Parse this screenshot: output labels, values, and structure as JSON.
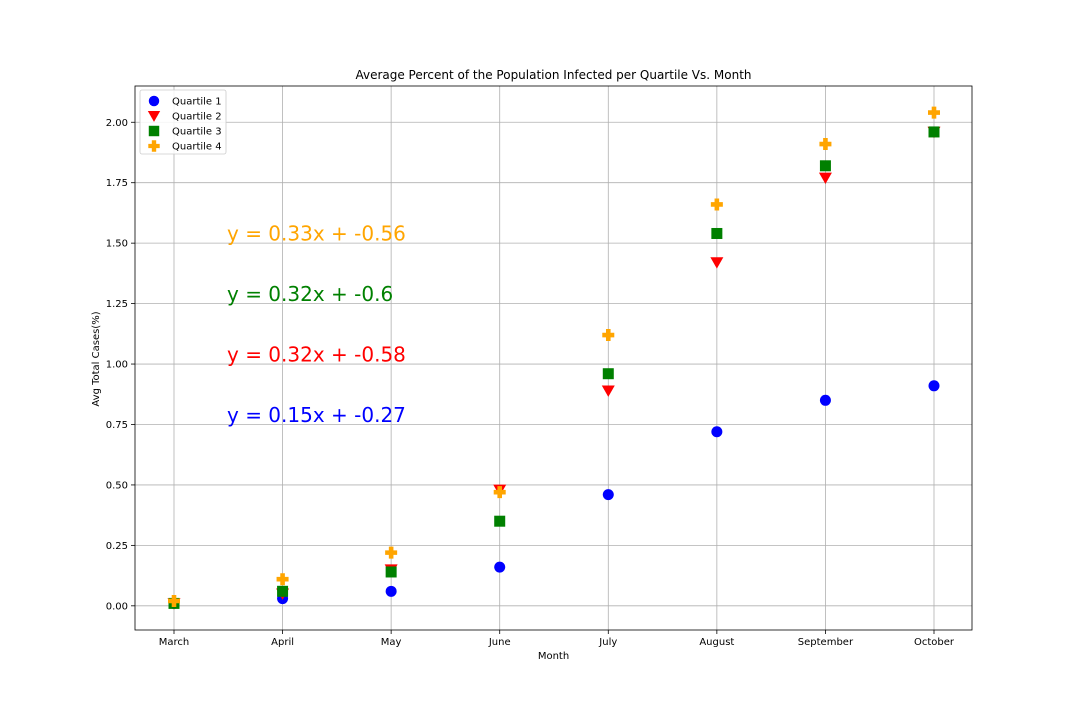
{
  "chart_data": {
    "type": "scatter",
    "title": "Average Percent of the Population Infected per Quartile Vs. Month",
    "xlabel": "Month",
    "ylabel": "Avg Total Cases(%)",
    "categories": [
      "March",
      "April",
      "May",
      "June",
      "July",
      "August",
      "September",
      "October"
    ],
    "ylim": [
      -0.1,
      2.15
    ],
    "yticks": [
      "0.00",
      "0.25",
      "0.50",
      "0.75",
      "1.00",
      "1.25",
      "1.50",
      "1.75",
      "2.00"
    ],
    "grid": true,
    "legend_position": "top-left",
    "series": [
      {
        "name": "Quartile 1",
        "color": "#0000ff",
        "marker": "circle",
        "values": [
          0.01,
          0.03,
          0.06,
          0.16,
          0.46,
          0.72,
          0.85,
          0.91
        ]
      },
      {
        "name": "Quartile 2",
        "color": "#ff0000",
        "marker": "triangle-down",
        "values": [
          0.01,
          0.05,
          0.15,
          0.48,
          0.89,
          1.42,
          1.77,
          1.96
        ]
      },
      {
        "name": "Quartile 3",
        "color": "#008000",
        "marker": "square",
        "values": [
          0.01,
          0.06,
          0.14,
          0.35,
          0.96,
          1.54,
          1.82,
          1.96
        ]
      },
      {
        "name": "Quartile 4",
        "color": "#ffa500",
        "marker": "plus",
        "values": [
          0.02,
          0.11,
          0.22,
          0.47,
          1.12,
          1.66,
          1.91,
          2.04
        ]
      }
    ],
    "annotations": [
      {
        "text": "y = 0.33x + -0.56",
        "color": "#ffa500",
        "y": 1.54
      },
      {
        "text": "y = 0.32x + -0.6",
        "color": "#008000",
        "y": 1.29
      },
      {
        "text": "y = 0.32x + -0.58",
        "color": "#ff0000",
        "y": 1.04
      },
      {
        "text": "y = 0.15x + -0.27",
        "color": "#0000ff",
        "y": 0.79
      }
    ]
  }
}
